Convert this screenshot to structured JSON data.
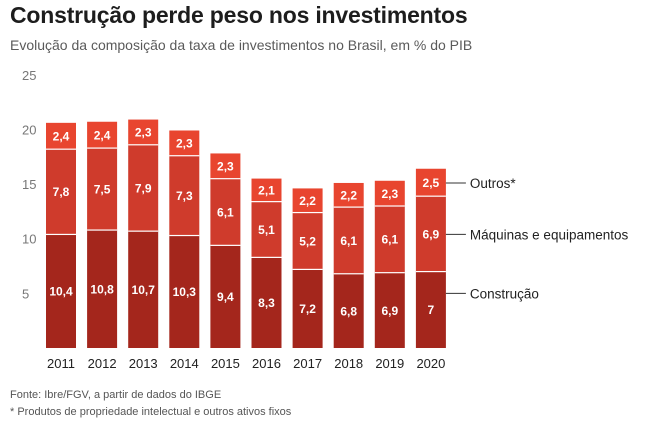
{
  "header": {
    "title": "Construção perde peso nos investimentos",
    "subtitle": "Evolução da composição da taxa de investimentos no Brasil, em % do PIB"
  },
  "footer": {
    "source": "Fonte: Ibre/FGV, a partir de dados do IBGE",
    "footnote": "* Produtos de propriedade intelectual e outros ativos fixos"
  },
  "colors": {
    "construcao": "#a4261c",
    "maquinas": "#cf3b2c",
    "outros": "#e8452f",
    "separator": "#ffffff"
  },
  "chart_data": {
    "type": "bar",
    "stacked": true,
    "title": "Construção perde peso nos investimentos",
    "subtitle": "Evolução da composição da taxa de investimentos no Brasil, em % do PIB",
    "xlabel": "",
    "ylabel": "",
    "ylim": [
      0,
      25
    ],
    "yticks": [
      5,
      10,
      15,
      20,
      25
    ],
    "categories": [
      "2011",
      "2012",
      "2013",
      "2014",
      "2015",
      "2016",
      "2017",
      "2018",
      "2019",
      "2020"
    ],
    "series": [
      {
        "name": "Construção",
        "color": "#a4261c",
        "values": [
          10.4,
          10.8,
          10.7,
          10.3,
          9.4,
          8.3,
          7.2,
          6.8,
          6.9,
          7
        ],
        "labels": [
          "10,4",
          "10,8",
          "10,7",
          "10,3",
          "9,4",
          "8,3",
          "7,2",
          "6,8",
          "6,9",
          "7"
        ]
      },
      {
        "name": "Máquinas e equipamentos",
        "color": "#cf3b2c",
        "values": [
          7.8,
          7.5,
          7.9,
          7.3,
          6.1,
          5.1,
          5.2,
          6.1,
          6.1,
          6.9
        ],
        "labels": [
          "7,8",
          "7,5",
          "7,9",
          "7,3",
          "6,1",
          "5,1",
          "5,2",
          "6,1",
          "6,1",
          "6,9"
        ]
      },
      {
        "name": "Outros*",
        "color": "#e8452f",
        "values": [
          2.4,
          2.4,
          2.3,
          2.3,
          2.3,
          2.1,
          2.2,
          2.2,
          2.3,
          2.5
        ],
        "labels": [
          "2,4",
          "2,4",
          "2,3",
          "2,3",
          "2,3",
          "2,1",
          "2,2",
          "2,2",
          "2,3",
          "2,5"
        ]
      }
    ],
    "legend_position": "right"
  }
}
